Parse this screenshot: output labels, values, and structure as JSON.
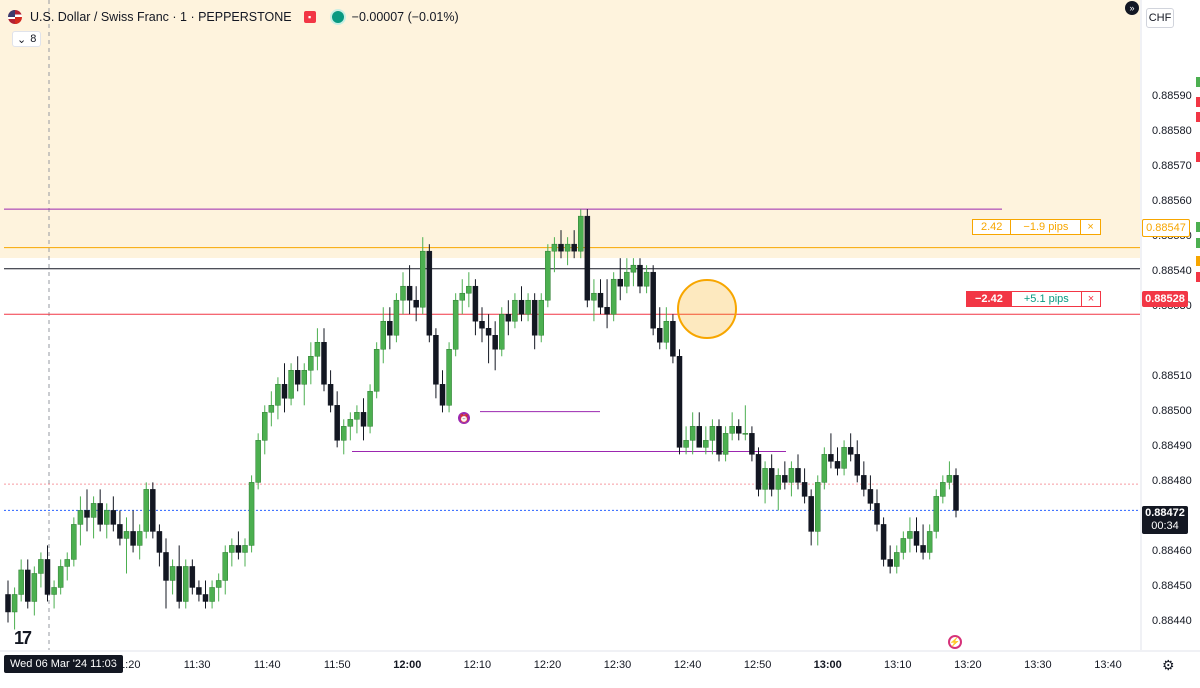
{
  "header": {
    "symbol": "U.S. Dollar / Swiss Franc · 1 · PEPPERSTONE",
    "change": "−0.00007 (−0.01%)",
    "indicator_count": "8"
  },
  "price_axis": {
    "currency": "CHF",
    "labels": [
      "0.88590",
      "0.88580",
      "0.88570",
      "0.88560",
      "0.88550",
      "0.88540",
      "0.88530",
      "0.88510",
      "0.88500",
      "0.88490",
      "0.88480",
      "0.88460",
      "0.88450",
      "0.88440"
    ]
  },
  "time_axis": {
    "date_label": "Wed 06 Mar '24  11:03",
    "labels": [
      "11:20",
      "11:30",
      "11:40",
      "11:50",
      "12:00",
      "12:10",
      "12:20",
      "12:30",
      "12:40",
      "12:50",
      "13:00",
      "13:10",
      "13:20",
      "13:30",
      "13:40"
    ],
    "bold_labels": [
      "12:00",
      "13:00"
    ]
  },
  "orders": {
    "take_profit": {
      "qty": "2.42",
      "pips": "−1.9 pips",
      "close": "×",
      "price": "0.88547"
    },
    "entry": {
      "qty": "−2.42",
      "pips": "+5.1 pips",
      "close": "×",
      "price": "0.88528"
    }
  },
  "current_price": {
    "price": "0.88472",
    "countdown": "00:34"
  },
  "colors": {
    "up": "#4caf50",
    "down": "#131722",
    "zone": "#fef3dd",
    "orange": "#f7a600",
    "red": "#f23645",
    "purple": "#9c27b0",
    "blue_dotted": "#2962ff"
  },
  "chart_data": {
    "type": "candlestick",
    "symbol": "USDCHF",
    "timeframe": "1",
    "y_range": [
      0.88435,
      0.88612
    ],
    "x_range": [
      "11:03",
      "13:44"
    ],
    "levels": {
      "take_profit": 0.88547,
      "entry": 0.88528,
      "current": 0.88472,
      "upper_purple": 0.88558,
      "zone_bottom": 0.88541
    },
    "candles": [
      {
        "o": 0.88448,
        "h": 0.88452,
        "l": 0.8844,
        "c": 0.88443
      },
      {
        "o": 0.88443,
        "h": 0.8845,
        "l": 0.88438,
        "c": 0.88448
      },
      {
        "o": 0.88448,
        "h": 0.88458,
        "l": 0.88446,
        "c": 0.88455
      },
      {
        "o": 0.88455,
        "h": 0.88458,
        "l": 0.88444,
        "c": 0.88446
      },
      {
        "o": 0.88446,
        "h": 0.88456,
        "l": 0.88442,
        "c": 0.88454
      },
      {
        "o": 0.88454,
        "h": 0.8846,
        "l": 0.8845,
        "c": 0.88458
      },
      {
        "o": 0.88458,
        "h": 0.88462,
        "l": 0.88446,
        "c": 0.88448
      },
      {
        "o": 0.88448,
        "h": 0.88452,
        "l": 0.88444,
        "c": 0.8845
      },
      {
        "o": 0.8845,
        "h": 0.88458,
        "l": 0.88448,
        "c": 0.88456
      },
      {
        "o": 0.88456,
        "h": 0.8846,
        "l": 0.88452,
        "c": 0.88458
      },
      {
        "o": 0.88458,
        "h": 0.8847,
        "l": 0.88456,
        "c": 0.88468
      },
      {
        "o": 0.88468,
        "h": 0.88476,
        "l": 0.88462,
        "c": 0.88472
      },
      {
        "o": 0.88472,
        "h": 0.88478,
        "l": 0.88466,
        "c": 0.8847
      },
      {
        "o": 0.8847,
        "h": 0.88476,
        "l": 0.88464,
        "c": 0.88474
      },
      {
        "o": 0.88474,
        "h": 0.88478,
        "l": 0.88466,
        "c": 0.88468
      },
      {
        "o": 0.88468,
        "h": 0.88474,
        "l": 0.88464,
        "c": 0.88472
      },
      {
        "o": 0.88472,
        "h": 0.88476,
        "l": 0.88466,
        "c": 0.88468
      },
      {
        "o": 0.88468,
        "h": 0.88472,
        "l": 0.88462,
        "c": 0.88464
      },
      {
        "o": 0.88464,
        "h": 0.8847,
        "l": 0.88454,
        "c": 0.88466
      },
      {
        "o": 0.88466,
        "h": 0.88472,
        "l": 0.8846,
        "c": 0.88462
      },
      {
        "o": 0.88462,
        "h": 0.88468,
        "l": 0.88458,
        "c": 0.88466
      },
      {
        "o": 0.88466,
        "h": 0.8848,
        "l": 0.88464,
        "c": 0.88478
      },
      {
        "o": 0.88478,
        "h": 0.8848,
        "l": 0.88464,
        "c": 0.88466
      },
      {
        "o": 0.88466,
        "h": 0.88468,
        "l": 0.88456,
        "c": 0.8846
      },
      {
        "o": 0.8846,
        "h": 0.88464,
        "l": 0.88444,
        "c": 0.88452
      },
      {
        "o": 0.88452,
        "h": 0.88458,
        "l": 0.88448,
        "c": 0.88456
      },
      {
        "o": 0.88456,
        "h": 0.88462,
        "l": 0.88444,
        "c": 0.88446
      },
      {
        "o": 0.88446,
        "h": 0.88458,
        "l": 0.88444,
        "c": 0.88456
      },
      {
        "o": 0.88456,
        "h": 0.88458,
        "l": 0.88448,
        "c": 0.8845
      },
      {
        "o": 0.8845,
        "h": 0.88452,
        "l": 0.88446,
        "c": 0.88448
      },
      {
        "o": 0.88448,
        "h": 0.88452,
        "l": 0.88444,
        "c": 0.88446
      },
      {
        "o": 0.88446,
        "h": 0.88452,
        "l": 0.88444,
        "c": 0.8845
      },
      {
        "o": 0.8845,
        "h": 0.88454,
        "l": 0.88446,
        "c": 0.88452
      },
      {
        "o": 0.88452,
        "h": 0.88462,
        "l": 0.88448,
        "c": 0.8846
      },
      {
        "o": 0.8846,
        "h": 0.88464,
        "l": 0.88456,
        "c": 0.88462
      },
      {
        "o": 0.88462,
        "h": 0.88466,
        "l": 0.88458,
        "c": 0.8846
      },
      {
        "o": 0.8846,
        "h": 0.88464,
        "l": 0.88456,
        "c": 0.88462
      },
      {
        "o": 0.88462,
        "h": 0.88482,
        "l": 0.8846,
        "c": 0.8848
      },
      {
        "o": 0.8848,
        "h": 0.88494,
        "l": 0.88478,
        "c": 0.88492
      },
      {
        "o": 0.88492,
        "h": 0.88502,
        "l": 0.88488,
        "c": 0.885
      },
      {
        "o": 0.885,
        "h": 0.88506,
        "l": 0.88496,
        "c": 0.88502
      },
      {
        "o": 0.88502,
        "h": 0.8851,
        "l": 0.88498,
        "c": 0.88508
      },
      {
        "o": 0.88508,
        "h": 0.88514,
        "l": 0.885,
        "c": 0.88504
      },
      {
        "o": 0.88504,
        "h": 0.88514,
        "l": 0.88502,
        "c": 0.88512
      },
      {
        "o": 0.88512,
        "h": 0.88516,
        "l": 0.88506,
        "c": 0.88508
      },
      {
        "o": 0.88508,
        "h": 0.88514,
        "l": 0.88502,
        "c": 0.88512
      },
      {
        "o": 0.88512,
        "h": 0.8852,
        "l": 0.88508,
        "c": 0.88516
      },
      {
        "o": 0.88516,
        "h": 0.88524,
        "l": 0.88512,
        "c": 0.8852
      },
      {
        "o": 0.8852,
        "h": 0.88524,
        "l": 0.88506,
        "c": 0.88508
      },
      {
        "o": 0.88508,
        "h": 0.88512,
        "l": 0.885,
        "c": 0.88502
      },
      {
        "o": 0.88502,
        "h": 0.88506,
        "l": 0.8849,
        "c": 0.88492
      },
      {
        "o": 0.88492,
        "h": 0.88498,
        "l": 0.88488,
        "c": 0.88496
      },
      {
        "o": 0.88496,
        "h": 0.885,
        "l": 0.88492,
        "c": 0.88498
      },
      {
        "o": 0.88498,
        "h": 0.88502,
        "l": 0.88494,
        "c": 0.885
      },
      {
        "o": 0.885,
        "h": 0.88504,
        "l": 0.88492,
        "c": 0.88496
      },
      {
        "o": 0.88496,
        "h": 0.88508,
        "l": 0.88494,
        "c": 0.88506
      },
      {
        "o": 0.88506,
        "h": 0.8852,
        "l": 0.88504,
        "c": 0.88518
      },
      {
        "o": 0.88518,
        "h": 0.8853,
        "l": 0.88514,
        "c": 0.88526
      },
      {
        "o": 0.88526,
        "h": 0.8853,
        "l": 0.88518,
        "c": 0.88522
      },
      {
        "o": 0.88522,
        "h": 0.88534,
        "l": 0.8852,
        "c": 0.88532
      },
      {
        "o": 0.88532,
        "h": 0.8854,
        "l": 0.88528,
        "c": 0.88536
      },
      {
        "o": 0.88536,
        "h": 0.88542,
        "l": 0.88528,
        "c": 0.88532
      },
      {
        "o": 0.88532,
        "h": 0.88536,
        "l": 0.88526,
        "c": 0.8853
      },
      {
        "o": 0.8853,
        "h": 0.8855,
        "l": 0.88528,
        "c": 0.88546
      },
      {
        "o": 0.88546,
        "h": 0.88548,
        "l": 0.8852,
        "c": 0.88522
      },
      {
        "o": 0.88522,
        "h": 0.88524,
        "l": 0.88504,
        "c": 0.88508
      },
      {
        "o": 0.88508,
        "h": 0.88512,
        "l": 0.885,
        "c": 0.88502
      },
      {
        "o": 0.88502,
        "h": 0.8852,
        "l": 0.885,
        "c": 0.88518
      },
      {
        "o": 0.88518,
        "h": 0.88534,
        "l": 0.88516,
        "c": 0.88532
      },
      {
        "o": 0.88532,
        "h": 0.88538,
        "l": 0.88528,
        "c": 0.88534
      },
      {
        "o": 0.88534,
        "h": 0.8854,
        "l": 0.8853,
        "c": 0.88536
      },
      {
        "o": 0.88536,
        "h": 0.88538,
        "l": 0.88522,
        "c": 0.88526
      },
      {
        "o": 0.88526,
        "h": 0.8853,
        "l": 0.8852,
        "c": 0.88524
      },
      {
        "o": 0.88524,
        "h": 0.88528,
        "l": 0.88514,
        "c": 0.88522
      },
      {
        "o": 0.88522,
        "h": 0.88526,
        "l": 0.88512,
        "c": 0.88518
      },
      {
        "o": 0.88518,
        "h": 0.8853,
        "l": 0.88516,
        "c": 0.88528
      },
      {
        "o": 0.88528,
        "h": 0.88532,
        "l": 0.88522,
        "c": 0.88526
      },
      {
        "o": 0.88526,
        "h": 0.88534,
        "l": 0.88524,
        "c": 0.88532
      },
      {
        "o": 0.88532,
        "h": 0.88536,
        "l": 0.88526,
        "c": 0.88528
      },
      {
        "o": 0.88528,
        "h": 0.88534,
        "l": 0.88526,
        "c": 0.88532
      },
      {
        "o": 0.88532,
        "h": 0.88534,
        "l": 0.88518,
        "c": 0.88522
      },
      {
        "o": 0.88522,
        "h": 0.88534,
        "l": 0.8852,
        "c": 0.88532
      },
      {
        "o": 0.88532,
        "h": 0.88548,
        "l": 0.8853,
        "c": 0.88546
      },
      {
        "o": 0.88546,
        "h": 0.8855,
        "l": 0.8854,
        "c": 0.88548
      },
      {
        "o": 0.88548,
        "h": 0.88552,
        "l": 0.88544,
        "c": 0.88546
      },
      {
        "o": 0.88546,
        "h": 0.8855,
        "l": 0.88542,
        "c": 0.88548
      },
      {
        "o": 0.88548,
        "h": 0.88552,
        "l": 0.88544,
        "c": 0.88546
      },
      {
        "o": 0.88546,
        "h": 0.88558,
        "l": 0.88544,
        "c": 0.88556
      },
      {
        "o": 0.88556,
        "h": 0.88558,
        "l": 0.8853,
        "c": 0.88532
      },
      {
        "o": 0.88532,
        "h": 0.88538,
        "l": 0.88526,
        "c": 0.88534
      },
      {
        "o": 0.88534,
        "h": 0.88538,
        "l": 0.88528,
        "c": 0.8853
      },
      {
        "o": 0.8853,
        "h": 0.88538,
        "l": 0.88524,
        "c": 0.88528
      },
      {
        "o": 0.88528,
        "h": 0.8854,
        "l": 0.88526,
        "c": 0.88538
      },
      {
        "o": 0.88538,
        "h": 0.88544,
        "l": 0.88532,
        "c": 0.88536
      },
      {
        "o": 0.88536,
        "h": 0.88544,
        "l": 0.88534,
        "c": 0.8854
      },
      {
        "o": 0.8854,
        "h": 0.88544,
        "l": 0.88536,
        "c": 0.88542
      },
      {
        "o": 0.88542,
        "h": 0.88544,
        "l": 0.88534,
        "c": 0.88536
      },
      {
        "o": 0.88536,
        "h": 0.88542,
        "l": 0.88534,
        "c": 0.8854
      },
      {
        "o": 0.8854,
        "h": 0.88542,
        "l": 0.88522,
        "c": 0.88524
      },
      {
        "o": 0.88524,
        "h": 0.8853,
        "l": 0.88518,
        "c": 0.8852
      },
      {
        "o": 0.8852,
        "h": 0.8853,
        "l": 0.88518,
        "c": 0.88526
      },
      {
        "o": 0.88526,
        "h": 0.88528,
        "l": 0.88514,
        "c": 0.88516
      },
      {
        "o": 0.88516,
        "h": 0.88518,
        "l": 0.88488,
        "c": 0.8849
      },
      {
        "o": 0.8849,
        "h": 0.88496,
        "l": 0.88488,
        "c": 0.88492
      },
      {
        "o": 0.88492,
        "h": 0.885,
        "l": 0.88488,
        "c": 0.88496
      },
      {
        "o": 0.88496,
        "h": 0.885,
        "l": 0.8849,
        "c": 0.8849
      },
      {
        "o": 0.8849,
        "h": 0.88496,
        "l": 0.88488,
        "c": 0.88492
      },
      {
        "o": 0.88492,
        "h": 0.88498,
        "l": 0.88488,
        "c": 0.88496
      },
      {
        "o": 0.88496,
        "h": 0.88498,
        "l": 0.88486,
        "c": 0.88488
      },
      {
        "o": 0.88488,
        "h": 0.88496,
        "l": 0.88486,
        "c": 0.88494
      },
      {
        "o": 0.88494,
        "h": 0.885,
        "l": 0.88492,
        "c": 0.88496
      },
      {
        "o": 0.88496,
        "h": 0.88498,
        "l": 0.88492,
        "c": 0.88494
      },
      {
        "o": 0.88494,
        "h": 0.88502,
        "l": 0.88492,
        "c": 0.88494
      },
      {
        "o": 0.88494,
        "h": 0.88496,
        "l": 0.88486,
        "c": 0.88488
      },
      {
        "o": 0.88488,
        "h": 0.8849,
        "l": 0.88476,
        "c": 0.88478
      },
      {
        "o": 0.88478,
        "h": 0.88486,
        "l": 0.88474,
        "c": 0.88484
      },
      {
        "o": 0.88484,
        "h": 0.88488,
        "l": 0.88476,
        "c": 0.88478
      },
      {
        "o": 0.88478,
        "h": 0.88484,
        "l": 0.88472,
        "c": 0.88482
      },
      {
        "o": 0.88482,
        "h": 0.88486,
        "l": 0.88478,
        "c": 0.8848
      },
      {
        "o": 0.8848,
        "h": 0.88486,
        "l": 0.88476,
        "c": 0.88484
      },
      {
        "o": 0.88484,
        "h": 0.88488,
        "l": 0.88478,
        "c": 0.8848
      },
      {
        "o": 0.8848,
        "h": 0.88484,
        "l": 0.88474,
        "c": 0.88476
      },
      {
        "o": 0.88476,
        "h": 0.88478,
        "l": 0.88462,
        "c": 0.88466
      },
      {
        "o": 0.88466,
        "h": 0.88482,
        "l": 0.88462,
        "c": 0.8848
      },
      {
        "o": 0.8848,
        "h": 0.8849,
        "l": 0.88478,
        "c": 0.88488
      },
      {
        "o": 0.88488,
        "h": 0.88494,
        "l": 0.88484,
        "c": 0.88486
      },
      {
        "o": 0.88486,
        "h": 0.8849,
        "l": 0.88482,
        "c": 0.88484
      },
      {
        "o": 0.88484,
        "h": 0.88492,
        "l": 0.88482,
        "c": 0.8849
      },
      {
        "o": 0.8849,
        "h": 0.88494,
        "l": 0.88486,
        "c": 0.88488
      },
      {
        "o": 0.88488,
        "h": 0.88492,
        "l": 0.8848,
        "c": 0.88482
      },
      {
        "o": 0.88482,
        "h": 0.88486,
        "l": 0.88476,
        "c": 0.88478
      },
      {
        "o": 0.88478,
        "h": 0.88482,
        "l": 0.88472,
        "c": 0.88474
      },
      {
        "o": 0.88474,
        "h": 0.88478,
        "l": 0.88466,
        "c": 0.88468
      },
      {
        "o": 0.88468,
        "h": 0.8847,
        "l": 0.88456,
        "c": 0.88458
      },
      {
        "o": 0.88458,
        "h": 0.88462,
        "l": 0.88454,
        "c": 0.88456
      },
      {
        "o": 0.88456,
        "h": 0.88462,
        "l": 0.88454,
        "c": 0.8846
      },
      {
        "o": 0.8846,
        "h": 0.88466,
        "l": 0.88458,
        "c": 0.88464
      },
      {
        "o": 0.88464,
        "h": 0.8847,
        "l": 0.8846,
        "c": 0.88466
      },
      {
        "o": 0.88466,
        "h": 0.8847,
        "l": 0.8846,
        "c": 0.88462
      },
      {
        "o": 0.88462,
        "h": 0.88468,
        "l": 0.88458,
        "c": 0.8846
      },
      {
        "o": 0.8846,
        "h": 0.88468,
        "l": 0.88458,
        "c": 0.88466
      },
      {
        "o": 0.88466,
        "h": 0.88478,
        "l": 0.88464,
        "c": 0.88476
      },
      {
        "o": 0.88476,
        "h": 0.88482,
        "l": 0.88474,
        "c": 0.8848
      },
      {
        "o": 0.8848,
        "h": 0.88486,
        "l": 0.88478,
        "c": 0.88482
      },
      {
        "o": 0.88482,
        "h": 0.88484,
        "l": 0.8847,
        "c": 0.88472
      }
    ]
  }
}
